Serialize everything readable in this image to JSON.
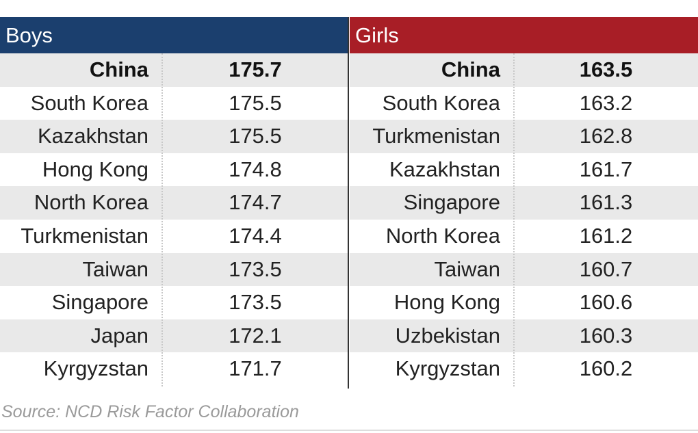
{
  "colors": {
    "boys_header": "#1b3f6e",
    "girls_header": "#a81e26",
    "row_shade": "#e9e9e9"
  },
  "chart_data": {
    "type": "table",
    "columns": [
      "Boys",
      "Girls"
    ],
    "tables": [
      {
        "header": "Boys",
        "rows": [
          {
            "country": "China",
            "value": "175.7",
            "highlight": true
          },
          {
            "country": "South Korea",
            "value": "175.5"
          },
          {
            "country": "Kazakhstan",
            "value": "175.5"
          },
          {
            "country": "Hong Kong",
            "value": "174.8"
          },
          {
            "country": "North Korea",
            "value": "174.7"
          },
          {
            "country": "Turkmenistan",
            "value": "174.4"
          },
          {
            "country": "Taiwan",
            "value": "173.5"
          },
          {
            "country": "Singapore",
            "value": "173.5"
          },
          {
            "country": "Japan",
            "value": "172.1"
          },
          {
            "country": "Kyrgyzstan",
            "value": "171.7"
          }
        ]
      },
      {
        "header": "Girls",
        "rows": [
          {
            "country": "China",
            "value": "163.5",
            "highlight": true
          },
          {
            "country": "South Korea",
            "value": "163.2"
          },
          {
            "country": "Turkmenistan",
            "value": "162.8"
          },
          {
            "country": "Kazakhstan",
            "value": "161.7"
          },
          {
            "country": "Singapore",
            "value": "161.3"
          },
          {
            "country": "North Korea",
            "value": "161.2"
          },
          {
            "country": "Taiwan",
            "value": "160.7"
          },
          {
            "country": "Hong Kong",
            "value": "160.6"
          },
          {
            "country": "Uzbekistan",
            "value": "160.3"
          },
          {
            "country": "Kyrgyzstan",
            "value": "160.2"
          }
        ]
      }
    ],
    "source": "Source: NCD Risk Factor Collaboration"
  }
}
